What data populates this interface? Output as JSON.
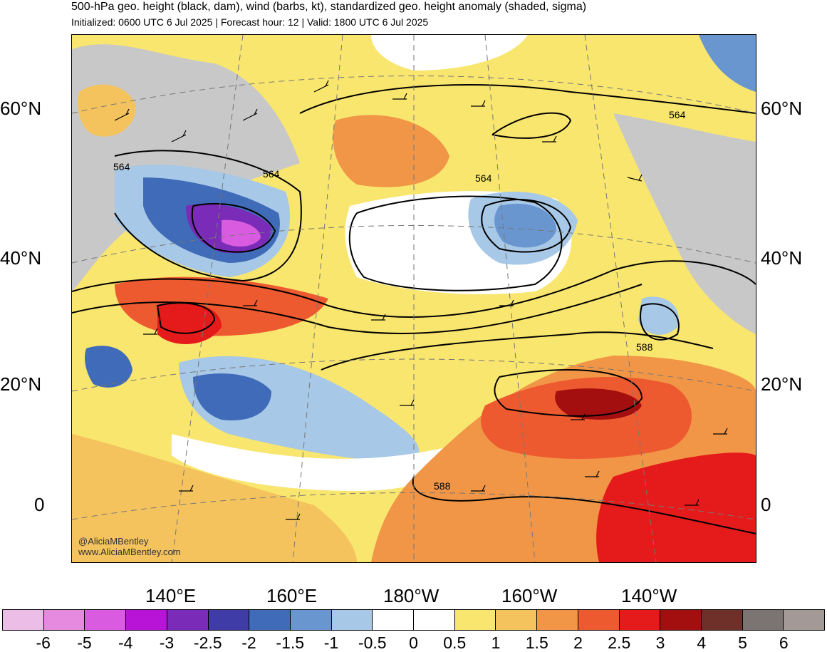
{
  "header": {
    "title": "500-hPa geo. height (black, dam), wind (barbs, kt), standardized geo. height anomaly (shaded, sigma)",
    "subtitle": "Initialized: 0600 UTC 6 Jul 2025 | Forecast hour: 12 | Valid: 1800 UTC 6 Jul 2025"
  },
  "map": {
    "lat_labels": [
      "60°N",
      "40°N",
      "20°N",
      "0"
    ],
    "lon_labels": [
      "140°E",
      "160°E",
      "180°W",
      "160°W",
      "140°W"
    ],
    "contour_labels": [
      "564",
      "564",
      "564",
      "564",
      "588",
      "588"
    ],
    "credit_handle": "@AliciaMBentley",
    "credit_url": "www.AliciaMBentley.com"
  },
  "colorbar": {
    "colors": [
      "#ecbde6",
      "#e68ae0",
      "#d95be0",
      "#b714d8",
      "#7a2bb8",
      "#3f3ca8",
      "#3f6bb8",
      "#6a96d0",
      "#a7c8e6",
      "#ffffff",
      "#ffffff",
      "#f9e66f",
      "#f4c35e",
      "#f19647",
      "#ee5a30",
      "#e51b1b",
      "#a30f0f",
      "#70302a",
      "#7b7472",
      "#a39a98"
    ],
    "labels": [
      "-6",
      "-5",
      "-4",
      "-3",
      "-2.5",
      "-2",
      "-1.5",
      "-1",
      "-0.5",
      "0",
      "0.5",
      "1",
      "1.5",
      "2",
      "2.5",
      "3",
      "4",
      "5",
      "6"
    ]
  }
}
